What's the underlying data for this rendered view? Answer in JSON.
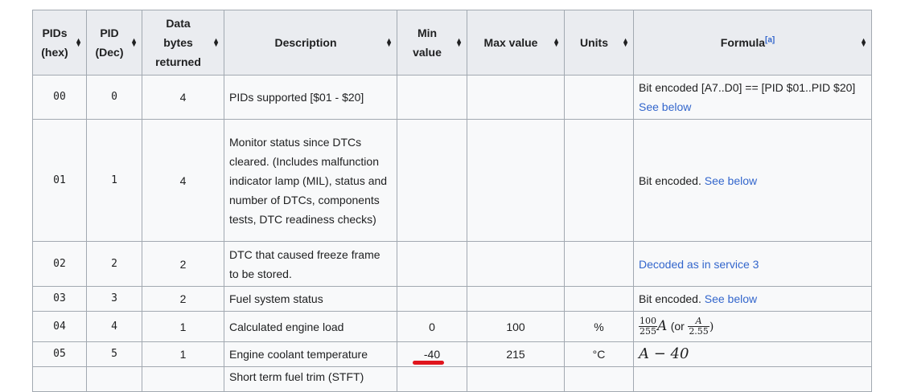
{
  "headers": {
    "pids_hex": [
      "PIDs",
      "(hex)"
    ],
    "pid_dec": [
      "PID",
      "(Dec)"
    ],
    "data_bytes": [
      "Data",
      "bytes",
      "returned"
    ],
    "description": "Description",
    "min_value": [
      "Min",
      "value"
    ],
    "max_value": "Max value",
    "units": "Units",
    "formula": "Formula",
    "formula_note": "[a]"
  },
  "rows": [
    {
      "hex": "00",
      "dec": "0",
      "bytes": "4",
      "description": "PIDs supported [$01 - $20]",
      "min": "",
      "max": "",
      "units": "",
      "formula_text": "Bit encoded [A7..D0] == [PID $01..PID $20]",
      "formula_link": "See below"
    },
    {
      "hex": "01",
      "dec": "1",
      "bytes": "4",
      "description": "Monitor status since DTCs cleared. (Includes malfunction indicator lamp (MIL), status and number of DTCs, components tests, DTC readiness checks)",
      "min": "",
      "max": "",
      "units": "",
      "formula_text": "Bit encoded.",
      "formula_link": "See below"
    },
    {
      "hex": "02",
      "dec": "2",
      "bytes": "2",
      "description": "DTC that caused freeze frame to be stored.",
      "min": "",
      "max": "",
      "units": "",
      "formula_link": "Decoded as in service 3"
    },
    {
      "hex": "03",
      "dec": "3",
      "bytes": "2",
      "description": "Fuel system status",
      "min": "",
      "max": "",
      "units": "",
      "formula_text": "Bit encoded.",
      "formula_link": "See below"
    },
    {
      "hex": "04",
      "dec": "4",
      "bytes": "1",
      "description": "Calculated engine load",
      "min": "0",
      "max": "100",
      "units": "%",
      "formula_num": "100",
      "formula_den": "255",
      "formula_var": "A",
      "formula_or": "(or",
      "formula_num2": "A",
      "formula_den2": "2.55",
      "formula_close": ")"
    },
    {
      "hex": "05",
      "dec": "5",
      "bytes": "1",
      "description": "Engine coolant temperature",
      "min": "-40",
      "max": "215",
      "units": "°C",
      "formula_expr": "A − 40"
    },
    {
      "hex": "",
      "dec": "",
      "bytes": "",
      "description": "Short term fuel trim (STFT)"
    }
  ]
}
